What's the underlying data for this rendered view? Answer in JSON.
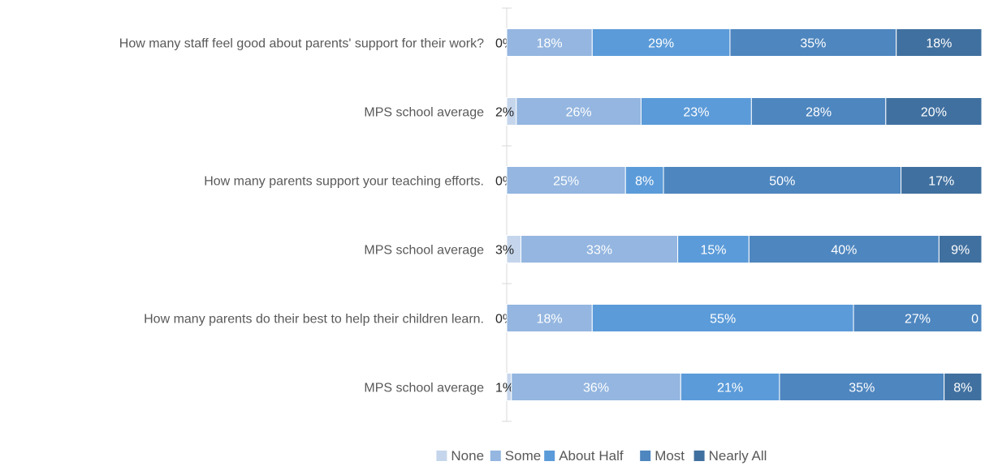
{
  "chart_data": {
    "type": "bar",
    "orientation": "horizontal",
    "stacked": "percent",
    "categories": [
      "How many staff feel good about parents' support for their work?",
      "MPS school average",
      "How many parents support your teaching efforts.",
      "MPS school average",
      "How many parents do their best to help their children learn.",
      "MPS school average"
    ],
    "series": [
      {
        "name": "None",
        "color": "#c5d6ec",
        "values": [
          0,
          2,
          0,
          3,
          0,
          1
        ],
        "labels": [
          "0%",
          "2%",
          "0%",
          "3%",
          "0%",
          "1%"
        ]
      },
      {
        "name": "Some",
        "color": "#94b6e0",
        "values": [
          18,
          26,
          25,
          33,
          18,
          36
        ],
        "labels": [
          "18%",
          "26%",
          "25%",
          "33%",
          "18%",
          "36%"
        ]
      },
      {
        "name": "About Half",
        "color": "#5b9bd9",
        "values": [
          29,
          23,
          8,
          15,
          55,
          21
        ],
        "labels": [
          "29%",
          "23%",
          "8%",
          "15%",
          "55%",
          "21%"
        ]
      },
      {
        "name": "Most",
        "color": "#4e86bf",
        "values": [
          35,
          28,
          50,
          40,
          27,
          35
        ],
        "labels": [
          "35%",
          "28%",
          "50%",
          "40%",
          "27%",
          "35%"
        ]
      },
      {
        "name": "Nearly All",
        "color": "#40709f",
        "values": [
          18,
          20,
          17,
          9,
          0,
          8
        ],
        "labels": [
          "18%",
          "20%",
          "17%",
          "9%",
          "0",
          "8%"
        ]
      }
    ],
    "legend_position": "bottom",
    "grid": false
  }
}
